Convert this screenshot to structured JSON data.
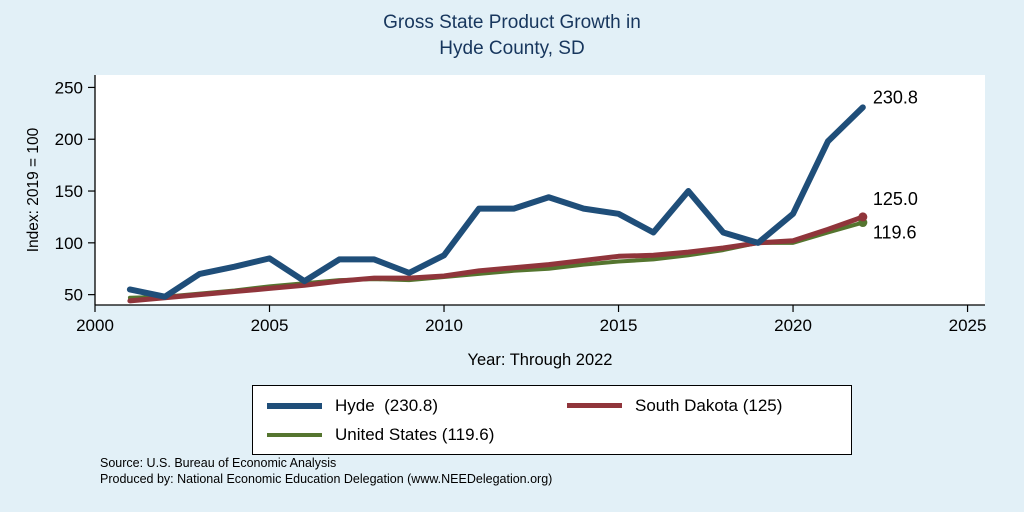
{
  "title": {
    "line1": "Gross State Product Growth in",
    "line2": "Hyde County, SD"
  },
  "chart_data": {
    "type": "line",
    "title": "Gross State Product Growth in Hyde County, SD",
    "xlabel": "Year: Through 2022",
    "ylabel": "Index: 2019 = 100",
    "xlim": [
      2000,
      2025.5
    ],
    "ylim": [
      40,
      262
    ],
    "xticks": [
      2000,
      2005,
      2010,
      2015,
      2020,
      2025
    ],
    "yticks": [
      50,
      100,
      150,
      200,
      250
    ],
    "grid": false,
    "legend_position": "bottom",
    "x": [
      2001,
      2002,
      2003,
      2004,
      2005,
      2006,
      2007,
      2008,
      2009,
      2010,
      2011,
      2012,
      2013,
      2014,
      2015,
      2016,
      2017,
      2018,
      2019,
      2020,
      2021,
      2022
    ],
    "series": [
      {
        "name": "United States",
        "color": "#55752f",
        "width": 4,
        "end_label": "119.6",
        "label_dy": 16,
        "end_dot": true,
        "values": [
          47,
          48,
          51,
          54,
          58,
          61,
          64,
          65,
          64,
          67,
          70,
          73,
          75,
          79,
          82,
          84,
          88,
          93,
          100,
          100,
          110,
          119.6
        ]
      },
      {
        "name": "South Dakota",
        "color": "#90353b",
        "width": 5,
        "end_label": "125.0",
        "label_dy": -12,
        "end_dot": true,
        "values": [
          44,
          47,
          50,
          53,
          56,
          59,
          63,
          66,
          66,
          68,
          73,
          76,
          79,
          83,
          87,
          88,
          91,
          95,
          100,
          102,
          113,
          125
        ]
      },
      {
        "name": "Hyde",
        "color": "#1f4e79",
        "width": 6,
        "end_label": "230.8",
        "label_dy": -4,
        "end_dot": false,
        "values": [
          55,
          48,
          70,
          77,
          85,
          63,
          84,
          84,
          71,
          88,
          133,
          133,
          144,
          133,
          128,
          110,
          150,
          110,
          100,
          128,
          198,
          230.8
        ]
      }
    ]
  },
  "legend": {
    "items": [
      {
        "label": "Hyde  (230.8)",
        "series_index": 2
      },
      {
        "label": "South Dakota (125)",
        "series_index": 1
      },
      {
        "label": "United States (119.6)",
        "series_index": 0
      }
    ]
  },
  "footer": {
    "line1": "Source: U.S. Bureau of Economic Analysis",
    "line2": "Produced by: National Economic Education Delegation (www.NEEDelegation.org)"
  }
}
